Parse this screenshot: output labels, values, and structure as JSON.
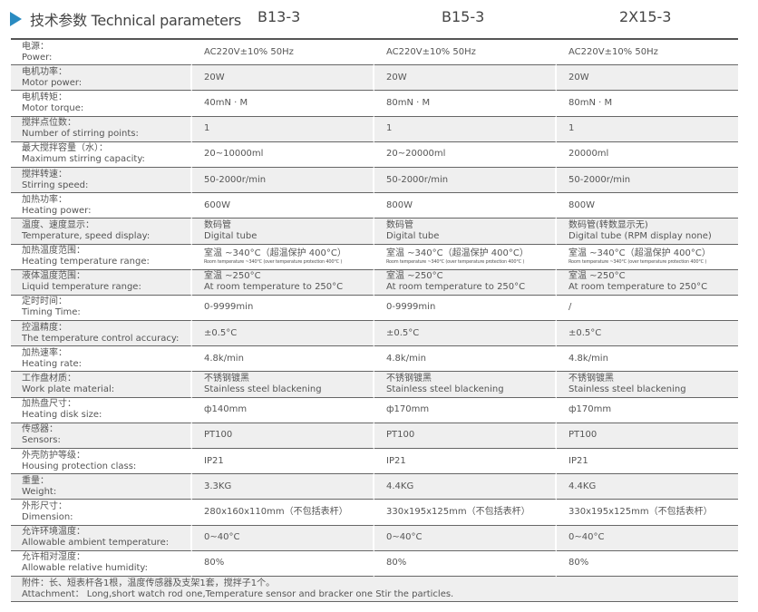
{
  "header": {
    "title": "技术参数 Technical parameters",
    "models": [
      "B13-3",
      "B15-3",
      "2X15-3"
    ],
    "icon": "triangle-right-icon",
    "accent": "#2a8bc1"
  },
  "rows": [
    {
      "zh": "电源：",
      "en": "Power:",
      "v": [
        "AC220V±10% 50Hz",
        "AC220V±10% 50Hz",
        "AC220V±10% 50Hz"
      ]
    },
    {
      "zh": "电机功率：",
      "en": "Motor power:",
      "v": [
        "20W",
        "20W",
        "20W"
      ]
    },
    {
      "zh": "电机转矩：",
      "en": "Motor torque:",
      "v": [
        "40mN · M",
        "80mN · M",
        "80mN · M"
      ]
    },
    {
      "zh": "搅拌点位数：",
      "en": "Number of stirring points:",
      "v": [
        "1",
        "1",
        "1"
      ]
    },
    {
      "zh": "最大搅拌容量（水）：",
      "en": "Maximum stirring capacity:",
      "v": [
        "20~10000ml",
        "20~20000ml",
        "20000ml"
      ]
    },
    {
      "zh": "搅拌转速：",
      "en": "Stirring speed:",
      "v": [
        "50-2000r/min",
        "50-2000r/min",
        "50-2000r/min"
      ]
    },
    {
      "zh": "加热功率：",
      "en": "Heating power:",
      "v": [
        "600W",
        "800W",
        "800W"
      ]
    },
    {
      "zh": "温度、速度显示：",
      "en": "Temperature, speed display:",
      "v": [
        "数码管",
        "数码管",
        "数码管(转数显示无)"
      ],
      "v2": [
        "Digital tube",
        "Digital tube",
        "Digital tube (RPM display none)"
      ]
    },
    {
      "zh": "加热温度范围：",
      "en": "Heating temperature range:",
      "v": [
        "室温 ~340°C（超温保护 400°C）",
        "室温 ~340°C（超温保护 400°C）",
        "室温 ~340°C（超温保护 400°C）"
      ],
      "small": [
        "Room temperature ~340°C (over temperature protection 400°C )",
        "Room temperature ~340°C (over temperature protection 400°C )",
        "Room temperature ~340°C (over temperature protection 400°C )"
      ]
    },
    {
      "zh": "液体温度范围：",
      "en": "Liquid temperature range:",
      "v": [
        "室温 ~250°C",
        "室温 ~250°C",
        "室温 ~250°C"
      ],
      "v2": [
        "At room temperature to 250°C",
        "At room temperature to 250°C",
        "At room temperature to 250°C"
      ]
    },
    {
      "zh": "定时时间：",
      "en": "Timing Time:",
      "v": [
        "0-9999min",
        "0-9999min",
        "/"
      ]
    },
    {
      "zh": "控温精度：",
      "en": "The temperature control accuracy:",
      "v": [
        "±0.5°C",
        "±0.5°C",
        "±0.5°C"
      ]
    },
    {
      "zh": "加热速率：",
      "en": "Heating rate:",
      "v": [
        "4.8k/min",
        "4.8k/min",
        "4.8k/min"
      ]
    },
    {
      "zh": "工作盘材质：",
      "en": "Work plate material:",
      "v": [
        "不锈钢镀黑",
        "不锈钢镀黑",
        "不锈钢镀黑"
      ],
      "v2": [
        "Stainless steel blackening",
        "Stainless steel blackening",
        "Stainless steel blackening"
      ]
    },
    {
      "zh": "加热盘尺寸：",
      "en": "Heating disk size:",
      "v": [
        "ф140mm",
        "ф170mm",
        "ф170mm"
      ]
    },
    {
      "zh": "传感器：",
      "en": "Sensors:",
      "v": [
        "PT100",
        "PT100",
        "PT100"
      ]
    },
    {
      "zh": "外壳防护等级：",
      "en": "Housing protection class:",
      "v": [
        "IP21",
        "IP21",
        "IP21"
      ]
    },
    {
      "zh": "重量：",
      "en": "Weight:",
      "v": [
        "3.3KG",
        "4.4KG",
        "4.4KG"
      ]
    },
    {
      "zh": "外形尺寸：",
      "en": "Dimension:",
      "v": [
        "280x160x110mm（不包括表杆）",
        "330x195x125mm（不包括表杆）",
        "330x195x125mm（不包括表杆）"
      ]
    },
    {
      "zh": "允许环境温度：",
      "en": "Allowable ambient temperature:",
      "v": [
        "0~40°C",
        "0~40°C",
        "0~40°C"
      ]
    },
    {
      "zh": "允许相对湿度：",
      "en": "Allowable relative humidity:",
      "v": [
        "80%",
        "80%",
        "80%"
      ]
    }
  ],
  "attachment": {
    "zh": "附件：长、短表杆各1根，温度传感器及支架1套，搅拌子1个。",
    "en": "Attachment：  Long,short watch rod one,Temperature sensor and bracker one Stir the particles."
  }
}
